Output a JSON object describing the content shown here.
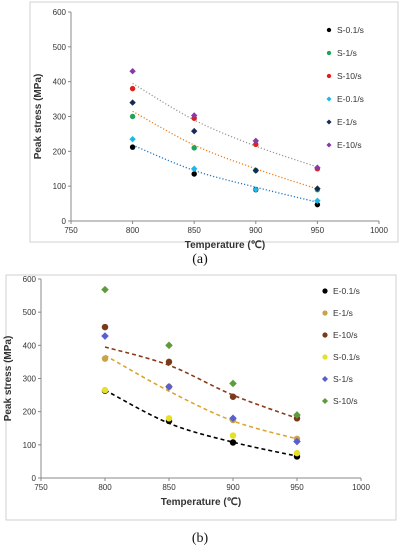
{
  "chart_data": [
    {
      "type": "scatter",
      "panel_label": "(a)",
      "xlabel": "Temperature (℃)",
      "ylabel": "Peak stress (MPa)",
      "xlim": [
        750,
        1000
      ],
      "ylim": [
        0,
        600
      ],
      "xticks": [
        "750",
        "800",
        "850",
        "900",
        "950",
        "1000"
      ],
      "yticks": [
        "0",
        "100",
        "200",
        "300",
        "400",
        "500",
        "600"
      ],
      "grid": false,
      "legend_position": "right",
      "x": [
        800,
        850,
        900,
        950
      ],
      "series": [
        {
          "name": "S-0.1/s",
          "color": "#000000",
          "marker": "circle",
          "values": [
            212,
            135,
            90,
            47
          ]
        },
        {
          "name": "S-1/s",
          "color": "#1fa35a",
          "marker": "circle",
          "values": [
            300,
            210,
            145,
            90
          ]
        },
        {
          "name": "S-10/s",
          "color": "#e0201b",
          "marker": "circle",
          "values": [
            380,
            295,
            220,
            150
          ]
        },
        {
          "name": "E-0.1/s",
          "color": "#1fb7e6",
          "marker": "diamond",
          "values": [
            235,
            150,
            90,
            58
          ]
        },
        {
          "name": "E-1/s",
          "color": "#152a55",
          "marker": "diamond",
          "values": [
            340,
            258,
            145,
            93
          ]
        },
        {
          "name": "E-10/s",
          "color": "#8a3aa5",
          "marker": "diamond",
          "values": [
            430,
            303,
            230,
            153
          ]
        }
      ],
      "trendlines": [
        {
          "color": "#1f77c8",
          "style": "dotted",
          "values": [
            218,
            145,
            97,
            54
          ]
        },
        {
          "color": "#f07f1a",
          "style": "dotted",
          "values": [
            315,
            218,
            150,
            92
          ]
        },
        {
          "color": "#999999",
          "style": "dotted",
          "values": [
            395,
            290,
            215,
            155
          ]
        }
      ]
    },
    {
      "type": "scatter",
      "panel_label": "(b)",
      "xlabel": "Temperature (℃)",
      "ylabel": "Peak stress (MPa)",
      "xlim": [
        750,
        1000
      ],
      "ylim": [
        0,
        600
      ],
      "xticks": [
        "750",
        "800",
        "850",
        "900",
        "950",
        "1000"
      ],
      "yticks": [
        "0",
        "100",
        "200",
        "300",
        "400",
        "500",
        "600"
      ],
      "grid": false,
      "legend_position": "right",
      "x": [
        800,
        850,
        900,
        950
      ],
      "series": [
        {
          "name": "E-0.1/s",
          "color": "#000000",
          "marker": "circle",
          "values": [
            263,
            172,
            107,
            65
          ]
        },
        {
          "name": "E-1/s",
          "color": "#c9a24a",
          "marker": "circle",
          "values": [
            360,
            275,
            175,
            118
          ]
        },
        {
          "name": "E-10/s",
          "color": "#7a3a1a",
          "marker": "circle",
          "values": [
            455,
            350,
            245,
            180
          ]
        },
        {
          "name": "S-0.1/s",
          "color": "#e6e02a",
          "marker": "circle",
          "values": [
            265,
            180,
            128,
            75
          ]
        },
        {
          "name": "S-1/s",
          "color": "#5a5fd0",
          "marker": "diamond",
          "values": [
            428,
            275,
            180,
            110
          ]
        },
        {
          "name": "S-10/s",
          "color": "#5e9b3a",
          "marker": "diamond",
          "values": [
            568,
            400,
            285,
            190
          ]
        }
      ],
      "trendlines": [
        {
          "color": "#000000",
          "style": "dashed",
          "values": [
            265,
            165,
            108,
            66
          ]
        },
        {
          "color": "#d9a631",
          "style": "dashed",
          "values": [
            370,
            262,
            172,
            118
          ]
        },
        {
          "color": "#8a3a1a",
          "style": "dashed",
          "values": [
            395,
            340,
            250,
            180
          ]
        }
      ]
    }
  ]
}
